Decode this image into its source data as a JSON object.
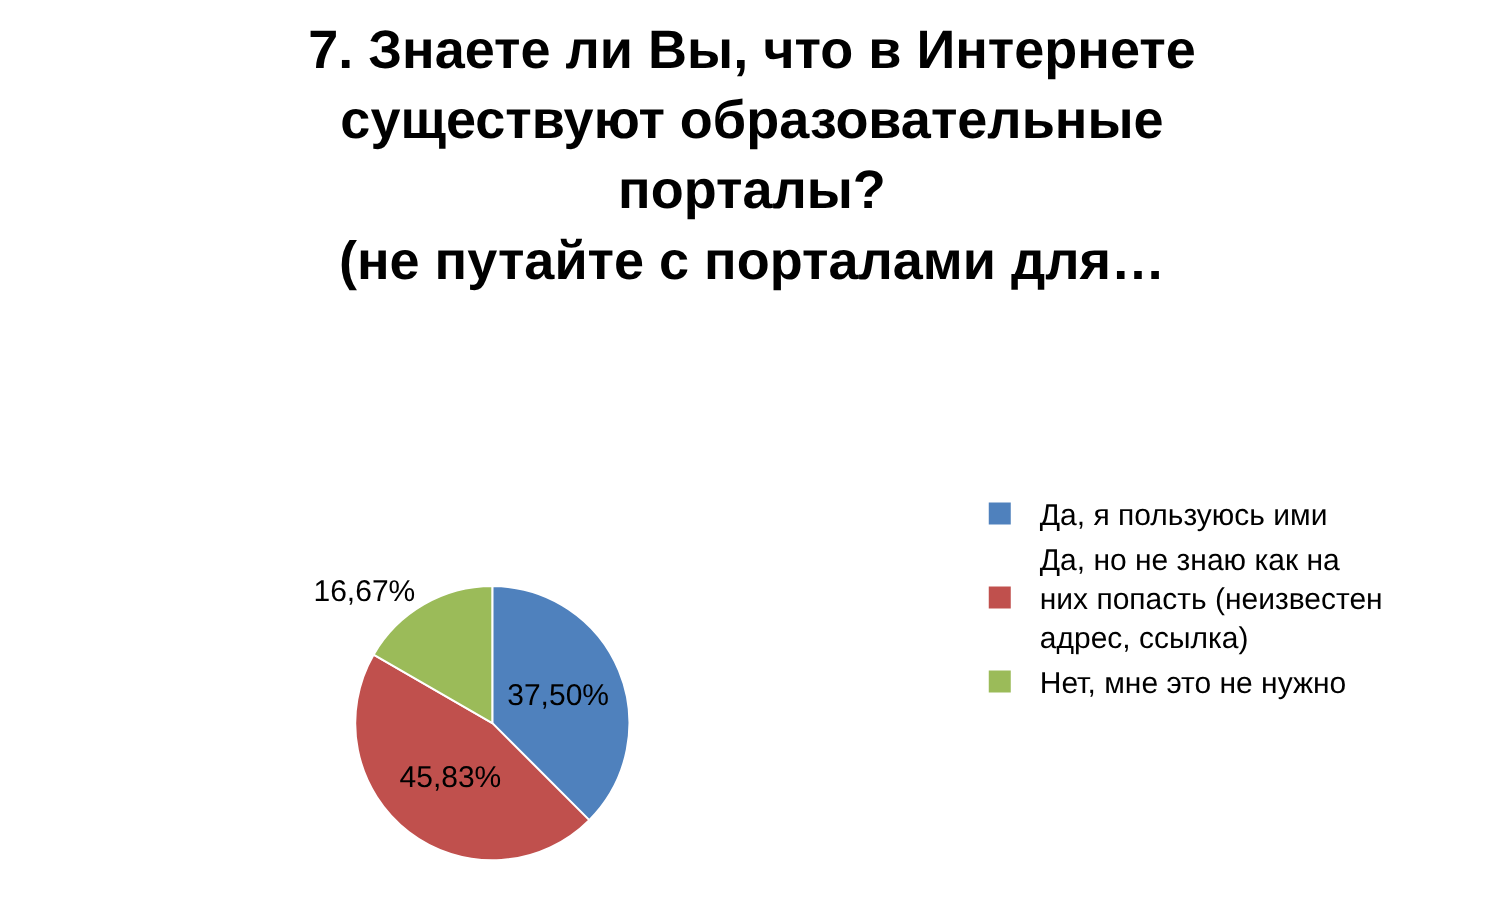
{
  "chart_data": {
    "type": "pie",
    "title": "7. Знаете ли Вы, что в Интернете существуют образовательные порталы?",
    "subtitle": "(не путайте с порталами для…",
    "categories": [
      "Да, я пользуюсь ими",
      "Да, но не знаю как на них попасть (неизвестен адрес, ссылка)",
      "Нет, мне это не нужно"
    ],
    "values": [
      37.5,
      45.83,
      16.67
    ],
    "value_labels": [
      "37,50%",
      "45,83%",
      "16,67%"
    ],
    "colors": [
      "#4f81bd",
      "#c0504d",
      "#9bbb59"
    ],
    "legend": "right"
  }
}
